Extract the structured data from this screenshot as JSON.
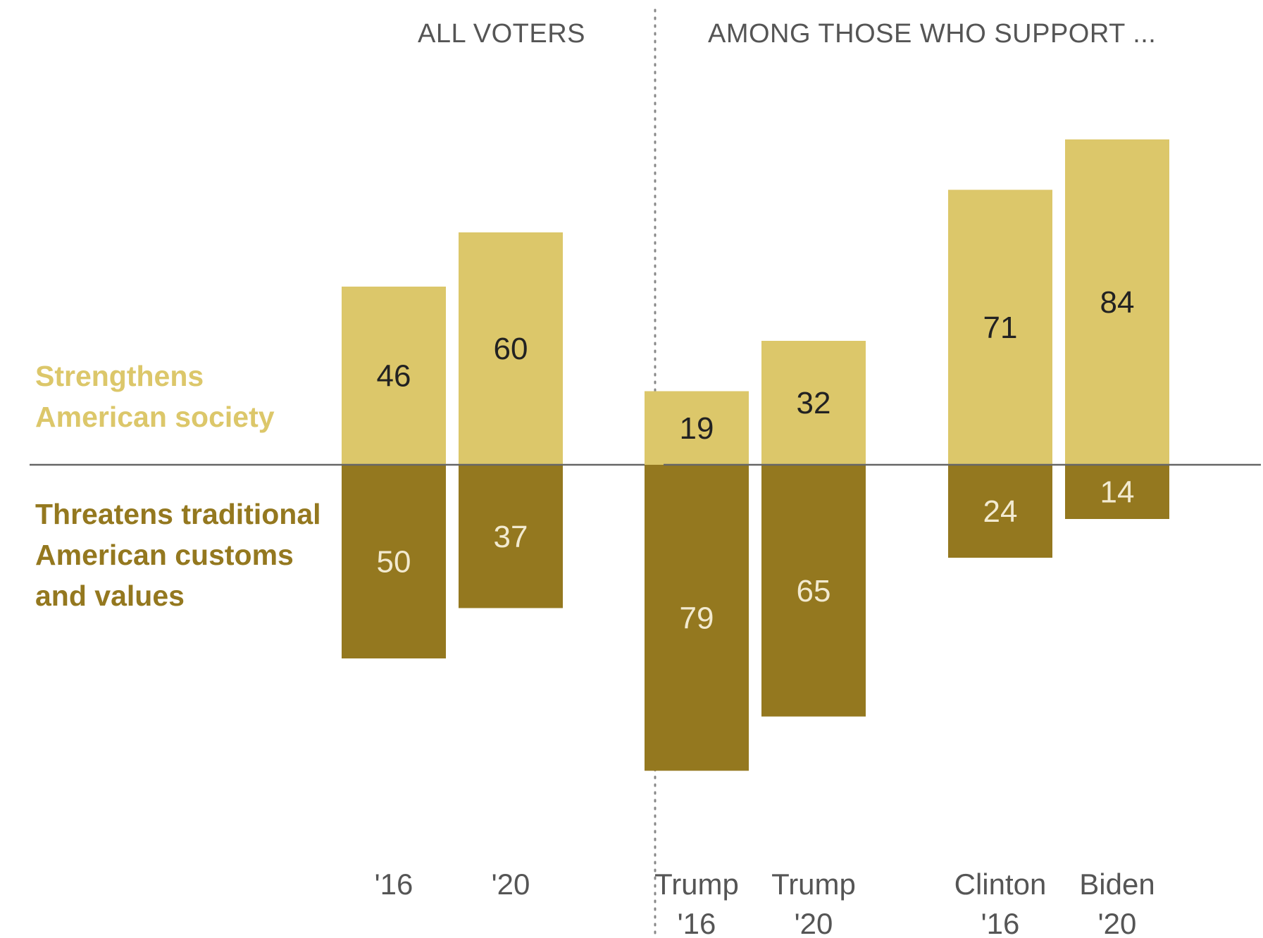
{
  "chart_data": {
    "type": "bar",
    "subtype": "diverging-stacked",
    "panels": [
      {
        "header": "ALL VOTERS",
        "categories": [
          [
            "'16"
          ],
          [
            "'20"
          ]
        ],
        "strengthens": [
          46,
          60
        ],
        "threatens": [
          50,
          37
        ]
      },
      {
        "header": "AMONG THOSE WHO SUPPORT ...",
        "categories": [
          [
            "Trump",
            "'16"
          ],
          [
            "Trump",
            "'20"
          ],
          [
            "Clinton",
            "'16"
          ],
          [
            "Biden",
            "'20"
          ]
        ],
        "strengthens": [
          19,
          32,
          71,
          84
        ],
        "threatens": [
          79,
          65,
          24,
          14
        ]
      }
    ],
    "series": [
      {
        "key": "strengthens",
        "name_lines": [
          "Strengthens",
          "American society"
        ],
        "color": "#DCC76A",
        "label_color": "#222222"
      },
      {
        "key": "threatens",
        "name_lines": [
          "Threatens traditional",
          "American customs",
          "and values"
        ],
        "color": "#94781F",
        "label_color": "#F2EAD0"
      }
    ],
    "baseline_color": "#666666",
    "divider": "dotted vertical line between panels",
    "grid": false,
    "legend_placement": "left"
  }
}
